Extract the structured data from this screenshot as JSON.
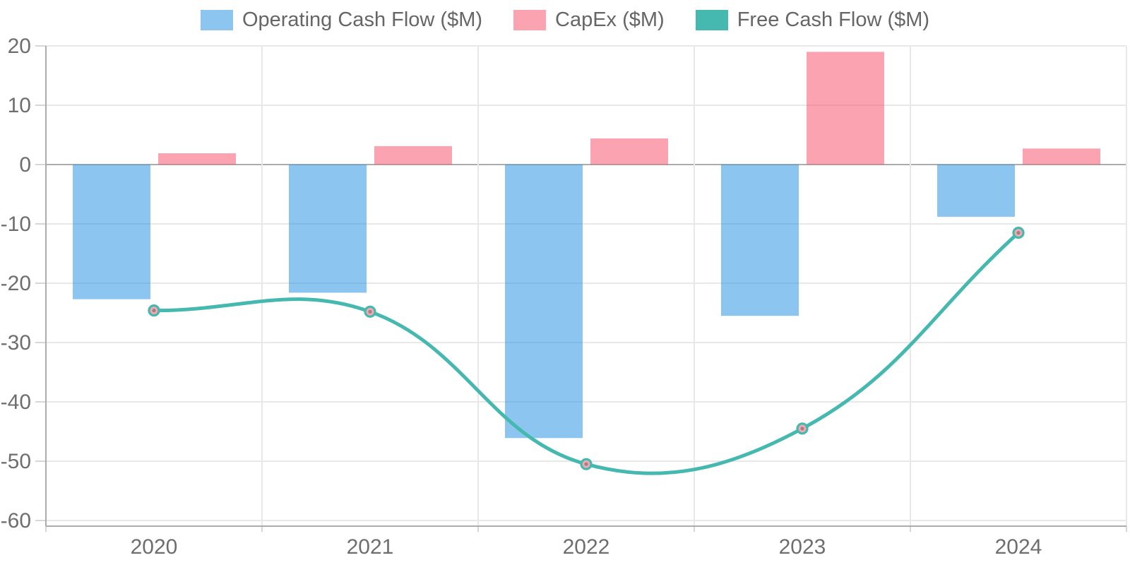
{
  "chart_data": {
    "type": "combo-bar-line",
    "title": "",
    "categories": [
      "2020",
      "2021",
      "2022",
      "2023",
      "2024"
    ],
    "series": [
      {
        "name": "Operating Cash Flow ($M)",
        "type": "bar",
        "fill": "rgba(25,141,225,0.5)",
        "display_color": "#8CC6F0",
        "values": [
          -22.7,
          -21.6,
          -46.1,
          -25.5,
          -8.8
        ]
      },
      {
        "name": "CapEx ($M)",
        "type": "bar",
        "fill": "rgba(249,71,101,0.5)",
        "display_color": "#FBA1B3",
        "values": [
          1.9,
          3.1,
          4.4,
          19.0,
          2.7
        ]
      },
      {
        "name": "Free Cash Flow ($M)",
        "type": "line",
        "fill": "#45B8B0",
        "display_color": "#45B8B0",
        "marker": {
          "fill": "#F4A8B0",
          "ring": "#45B8B0",
          "dot": "#A08186"
        },
        "line_tension": 0.4,
        "values": [
          -24.6,
          -24.8,
          -50.5,
          -44.5,
          -11.5
        ]
      }
    ],
    "xlabel": "",
    "ylabel": "",
    "y_axis": {
      "ticks": [
        20,
        10,
        0,
        -10,
        -20,
        -30,
        -40,
        -50,
        -60
      ],
      "label_color": "#6E6E6E"
    },
    "x_axis": {
      "label_color": "#6E6E6E"
    },
    "ylim": [
      -61,
      20
    ],
    "grid": {
      "on": true,
      "line_color": "#E8E8E8",
      "zero_line_color": "#ACACAC",
      "axis_line_color": "#ACACAC",
      "tick_mark_color": "#D6D6D6"
    },
    "legend_position": "top",
    "legend_text_color": "#666666"
  }
}
